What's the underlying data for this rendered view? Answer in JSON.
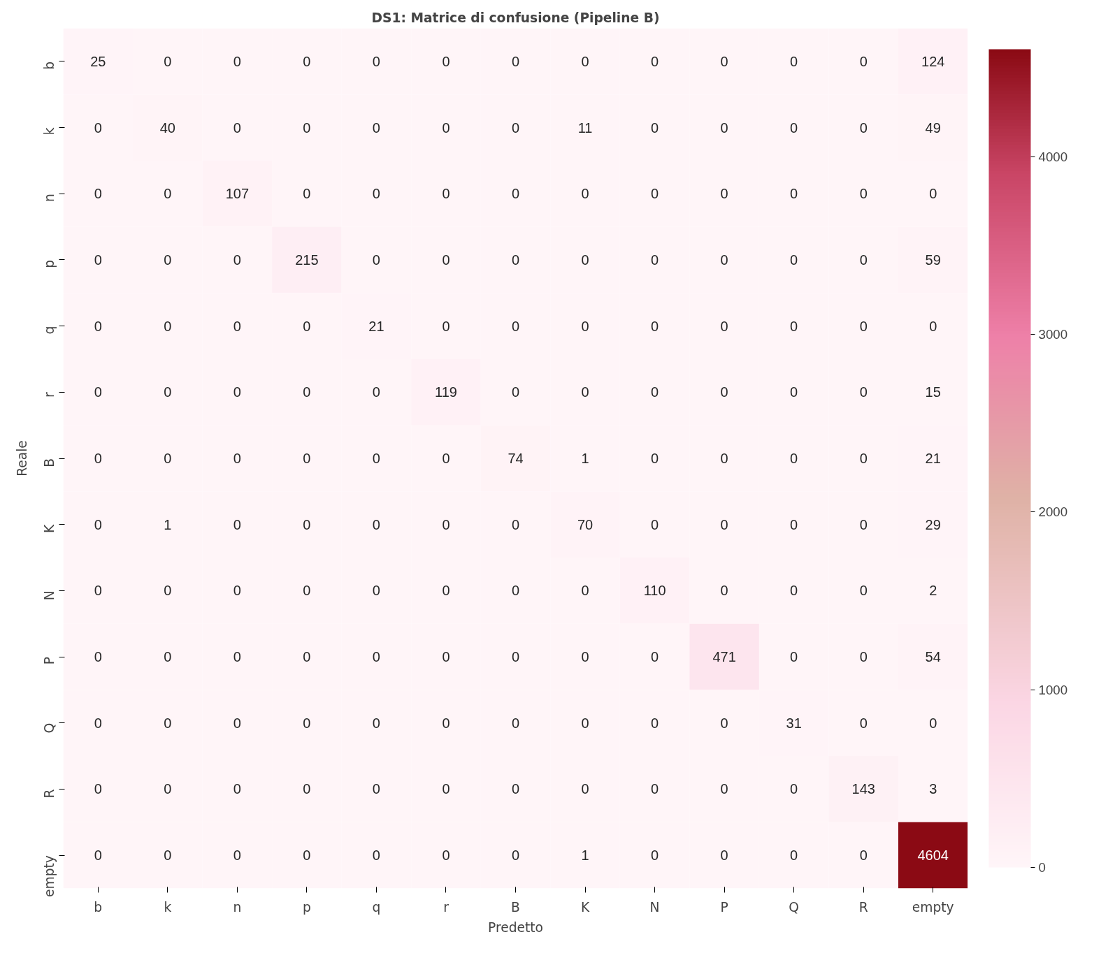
{
  "chart_data": {
    "type": "heatmap",
    "title": "DS1: Matrice di confusione (Pipeline B)",
    "xlabel": "Predetto",
    "ylabel": "Reale",
    "categories": [
      "b",
      "k",
      "n",
      "p",
      "q",
      "r",
      "B",
      "K",
      "N",
      "P",
      "Q",
      "R",
      "empty"
    ],
    "y_categories": [
      "b",
      "k",
      "n",
      "p",
      "q",
      "r",
      "B",
      "K",
      "N",
      "P",
      "Q",
      "R",
      "empty"
    ],
    "cells": [
      [
        25,
        0,
        0,
        0,
        0,
        0,
        0,
        0,
        0,
        0,
        0,
        0,
        124
      ],
      [
        0,
        40,
        0,
        0,
        0,
        0,
        0,
        11,
        0,
        0,
        0,
        0,
        49
      ],
      [
        0,
        0,
        107,
        0,
        0,
        0,
        0,
        0,
        0,
        0,
        0,
        0,
        0
      ],
      [
        0,
        0,
        0,
        215,
        0,
        0,
        0,
        0,
        0,
        0,
        0,
        0,
        59
      ],
      [
        0,
        0,
        0,
        0,
        21,
        0,
        0,
        0,
        0,
        0,
        0,
        0,
        0
      ],
      [
        0,
        0,
        0,
        0,
        0,
        119,
        0,
        0,
        0,
        0,
        0,
        0,
        15
      ],
      [
        0,
        0,
        0,
        0,
        0,
        0,
        74,
        1,
        0,
        0,
        0,
        0,
        21
      ],
      [
        0,
        1,
        0,
        0,
        0,
        0,
        0,
        70,
        0,
        0,
        0,
        0,
        29
      ],
      [
        0,
        0,
        0,
        0,
        0,
        0,
        0,
        0,
        110,
        0,
        0,
        0,
        2
      ],
      [
        0,
        0,
        0,
        0,
        0,
        0,
        0,
        0,
        0,
        471,
        0,
        0,
        54
      ],
      [
        0,
        0,
        0,
        0,
        0,
        0,
        0,
        0,
        0,
        0,
        31,
        0,
        0
      ],
      [
        0,
        0,
        0,
        0,
        0,
        0,
        0,
        0,
        0,
        0,
        0,
        143,
        3
      ],
      [
        0,
        0,
        0,
        0,
        0,
        0,
        0,
        1,
        0,
        0,
        0,
        0,
        4604
      ]
    ],
    "clim": [
      0,
      4604
    ],
    "cticks": [
      0,
      1000,
      2000,
      3000,
      4000
    ],
    "data_labels": true
  }
}
